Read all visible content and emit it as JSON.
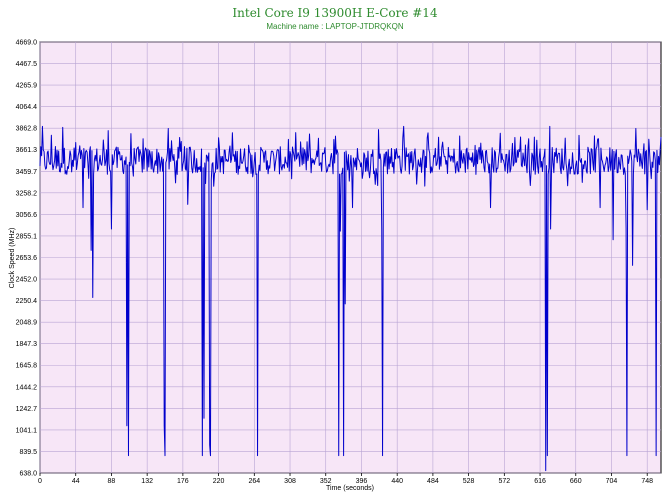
{
  "chart_data": {
    "type": "line",
    "title": "Intel Core I9 13900H E-Core #14",
    "subtitle": "Machine name : LAPTOP-JTDRQKQN",
    "xlabel": "Time (seconds)",
    "ylabel": "Clock Speed (MHz)",
    "xlim": [
      0,
      765
    ],
    "ylim": [
      638.0,
      4669.0
    ],
    "x_ticks": [
      "0",
      "44",
      "88",
      "132",
      "176",
      "220",
      "264",
      "308",
      "352",
      "396",
      "440",
      "484",
      "528",
      "572",
      "616",
      "660",
      "704",
      "748"
    ],
    "y_ticks": [
      "4669.0",
      "4467.5",
      "4265.9",
      "4064.4",
      "3862.8",
      "3661.3",
      "3459.7",
      "3258.2",
      "3056.6",
      "2855.1",
      "2653.6",
      "2452.0",
      "2250.4",
      "2048.9",
      "1847.3",
      "1645.8",
      "1444.2",
      "1242.7",
      "1041.1",
      "839.5",
      "638.0"
    ],
    "grid": true,
    "colors": {
      "line": "#0000cc",
      "plot_bg": "#f7e6f7",
      "grid": "#b8a4d4",
      "title": "#2e8b2e"
    },
    "series": [
      {
        "baseline": 3560,
        "samples_approx": 765,
        "dips": [
          {
            "x": 53,
            "y": 3120
          },
          {
            "x": 63,
            "y": 2720
          },
          {
            "x": 65,
            "y": 2280
          },
          {
            "x": 88,
            "y": 2920
          },
          {
            "x": 107,
            "y": 1080
          },
          {
            "x": 109,
            "y": 800
          },
          {
            "x": 153,
            "y": 1080
          },
          {
            "x": 154,
            "y": 800
          },
          {
            "x": 182,
            "y": 3150
          },
          {
            "x": 200,
            "y": 800
          },
          {
            "x": 202,
            "y": 1150
          },
          {
            "x": 209,
            "y": 900
          },
          {
            "x": 210,
            "y": 800
          },
          {
            "x": 214,
            "y": 3320
          },
          {
            "x": 268,
            "y": 800
          },
          {
            "x": 368,
            "y": 800
          },
          {
            "x": 370,
            "y": 2900
          },
          {
            "x": 374,
            "y": 800
          },
          {
            "x": 376,
            "y": 2220
          },
          {
            "x": 385,
            "y": 3120
          },
          {
            "x": 421,
            "y": 2920
          },
          {
            "x": 422,
            "y": 800
          },
          {
            "x": 555,
            "y": 3120
          },
          {
            "x": 623,
            "y": 660
          },
          {
            "x": 625,
            "y": 800
          },
          {
            "x": 629,
            "y": 2920
          },
          {
            "x": 690,
            "y": 3120
          },
          {
            "x": 706,
            "y": 2820
          },
          {
            "x": 722,
            "y": 2930
          },
          {
            "x": 723,
            "y": 800
          },
          {
            "x": 730,
            "y": 2580
          },
          {
            "x": 748,
            "y": 3100
          },
          {
            "x": 759,
            "y": 800
          }
        ],
        "peaks": [
          {
            "x": 3,
            "y": 3880
          },
          {
            "x": 28,
            "y": 3870
          },
          {
            "x": 84,
            "y": 3840
          },
          {
            "x": 158,
            "y": 3860
          },
          {
            "x": 417,
            "y": 3850
          },
          {
            "x": 448,
            "y": 3880
          },
          {
            "x": 628,
            "y": 3880
          },
          {
            "x": 734,
            "y": 3860
          }
        ]
      }
    ]
  }
}
